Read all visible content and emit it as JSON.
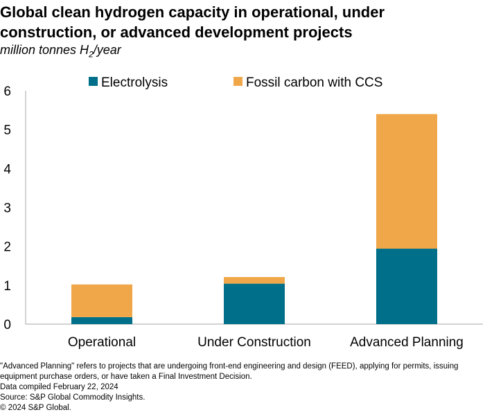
{
  "title": "Global clean hydrogen capacity in operational, under construction, or advanced development projects",
  "subtitle": {
    "prefix": "million tonnes H",
    "subscript": "2",
    "suffix": "/year"
  },
  "footnotes": [
    "\"Advanced Planning\" refers to projects that are undergoing front-end engineering and design (FEED), applying for permits, issuing equipment purchase orders, or have taken a Final Investment Decision.",
    "Data compiled February 22, 2024",
    "Source: S&P Global Commodity Insights.",
    "© 2024 S&P Global."
  ],
  "chart_data": {
    "type": "bar",
    "stacked": true,
    "categories": [
      "Operational",
      "Under Construction",
      "Advanced Planning"
    ],
    "series": [
      {
        "name": "Electrolysis",
        "values": [
          0.18,
          1.04,
          1.94
        ],
        "color": "#006f8a"
      },
      {
        "name": "Fossil carbon with CCS",
        "values": [
          0.84,
          0.17,
          3.46
        ],
        "color": "#f0a74a"
      }
    ],
    "ylim": [
      0,
      6
    ],
    "yticks": [
      "0",
      "1",
      "2",
      "3",
      "4",
      "5",
      "6"
    ],
    "legend_position": "top",
    "grid": false
  }
}
